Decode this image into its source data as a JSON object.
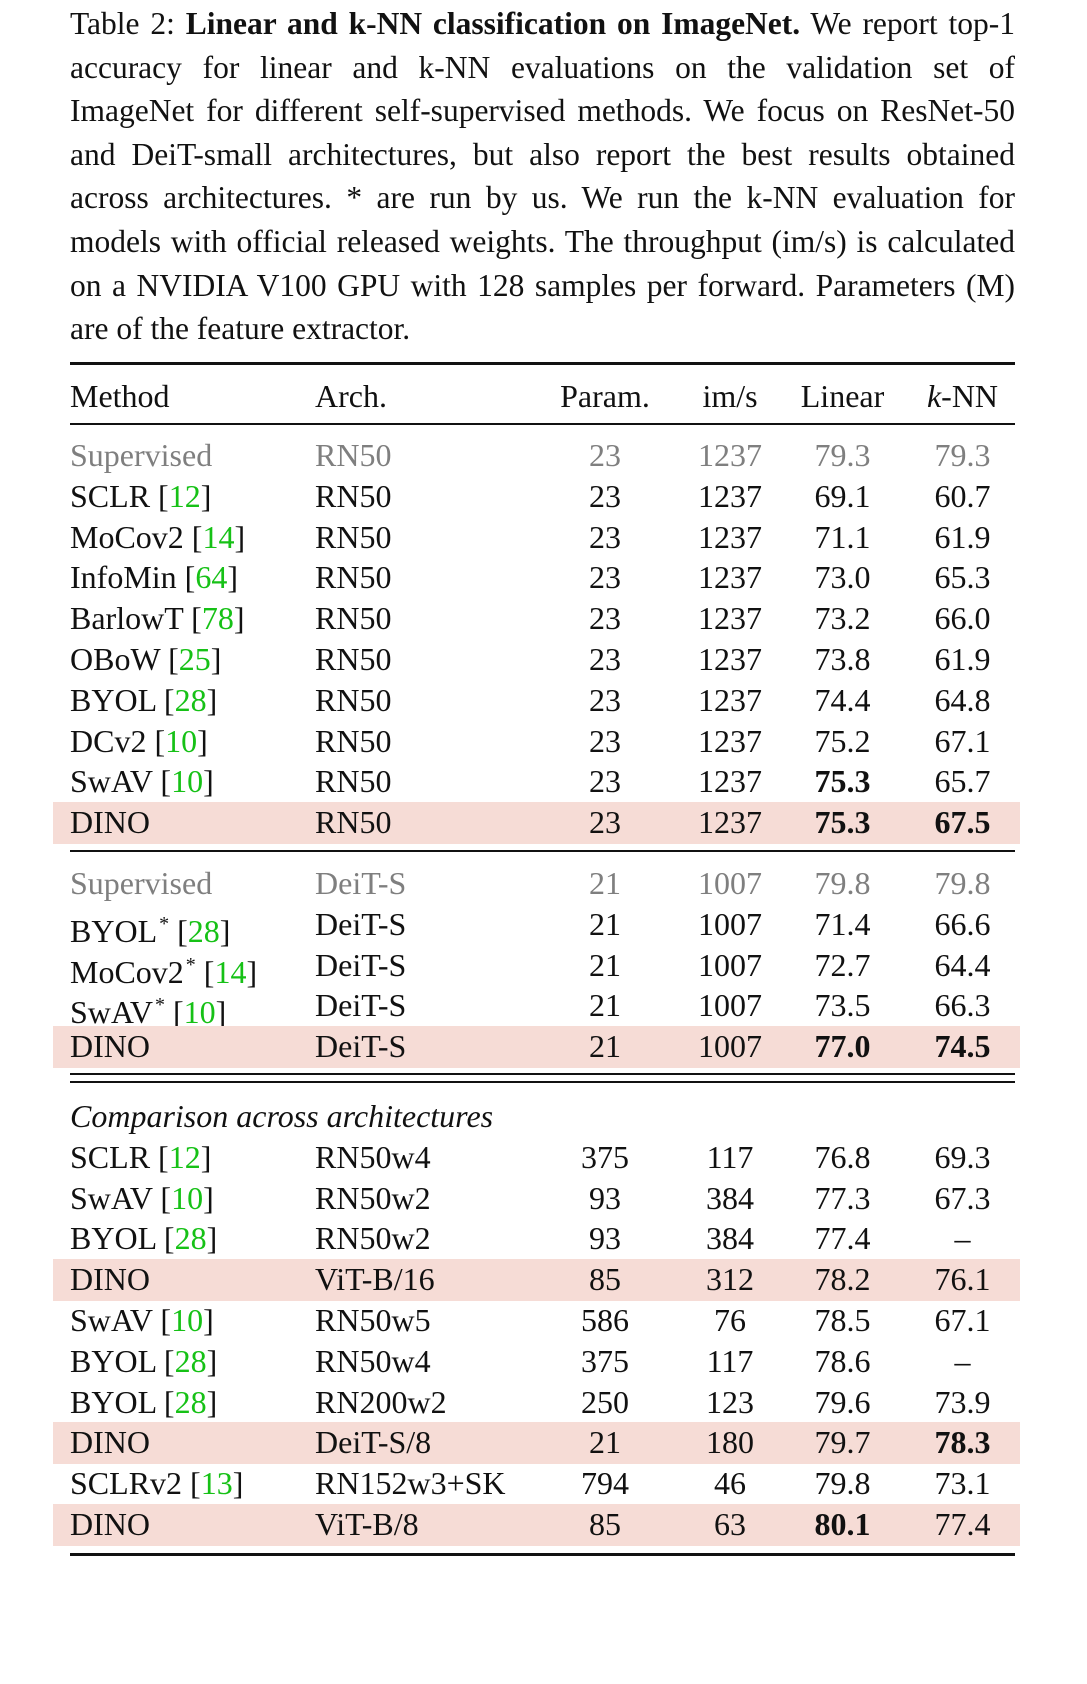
{
  "caption": {
    "label": "Table 2:",
    "title": "Linear and k-NN classification on ImageNet.",
    "body": "We report top-1 accuracy for linear and k-NN evaluations on the validation set of ImageNet for different self-supervised methods. We focus on ResNet-50 and DeiT-small architectures, but also report the best results obtained across architectures. * are run by us. We run the k-NN evaluation for models with official released weights. The throughput (im/s) is calculated on a NVIDIA V100 GPU with 128 samples per forward. Parameters (M) are of the feature extractor."
  },
  "header": [
    "Method",
    "Arch.",
    "Param.",
    "im/s",
    "Linear",
    "k-NN"
  ],
  "groups": [
    {
      "rows": [
        {
          "method": "Supervised",
          "ref": "",
          "star": false,
          "arch": "RN50",
          "param": "23",
          "ims": "1237",
          "linear": "79.3",
          "knn": "79.3",
          "gray": true
        },
        {
          "method": "SCLR",
          "ref": "12",
          "star": false,
          "arch": "RN50",
          "param": "23",
          "ims": "1237",
          "linear": "69.1",
          "knn": "60.7"
        },
        {
          "method": "MoCov2",
          "ref": "14",
          "star": false,
          "arch": "RN50",
          "param": "23",
          "ims": "1237",
          "linear": "71.1",
          "knn": "61.9"
        },
        {
          "method": "InfoMin",
          "ref": "64",
          "star": false,
          "arch": "RN50",
          "param": "23",
          "ims": "1237",
          "linear": "73.0",
          "knn": "65.3"
        },
        {
          "method": "BarlowT",
          "ref": "78",
          "star": false,
          "arch": "RN50",
          "param": "23",
          "ims": "1237",
          "linear": "73.2",
          "knn": "66.0"
        },
        {
          "method": "OBoW",
          "ref": "25",
          "star": false,
          "arch": "RN50",
          "param": "23",
          "ims": "1237",
          "linear": "73.8",
          "knn": "61.9"
        },
        {
          "method": "BYOL",
          "ref": "28",
          "star": false,
          "arch": "RN50",
          "param": "23",
          "ims": "1237",
          "linear": "74.4",
          "knn": "64.8"
        },
        {
          "method": "DCv2",
          "ref": "10",
          "star": false,
          "arch": "RN50",
          "param": "23",
          "ims": "1237",
          "linear": "75.2",
          "knn": "67.1"
        },
        {
          "method": "SwAV",
          "ref": "10",
          "star": false,
          "arch": "RN50",
          "param": "23",
          "ims": "1237",
          "linear": "75.3",
          "knn": "65.7",
          "bold_linear": true
        },
        {
          "method": "DINO",
          "ref": "",
          "star": false,
          "arch": "RN50",
          "param": "23",
          "ims": "1237",
          "linear": "75.3",
          "knn": "67.5",
          "highlight": true,
          "bold_linear": true,
          "bold_knn": true
        }
      ]
    },
    {
      "rows": [
        {
          "method": "Supervised",
          "ref": "",
          "star": false,
          "arch": "DeiT-S",
          "param": "21",
          "ims": "1007",
          "linear": "79.8",
          "knn": "79.8",
          "gray": true
        },
        {
          "method": "BYOL",
          "ref": "28",
          "star": true,
          "arch": "DeiT-S",
          "param": "21",
          "ims": "1007",
          "linear": "71.4",
          "knn": "66.6"
        },
        {
          "method": "MoCov2",
          "ref": "14",
          "star": true,
          "arch": "DeiT-S",
          "param": "21",
          "ims": "1007",
          "linear": "72.7",
          "knn": "64.4"
        },
        {
          "method": "SwAV",
          "ref": "10",
          "star": true,
          "arch": "DeiT-S",
          "param": "21",
          "ims": "1007",
          "linear": "73.5",
          "knn": "66.3"
        },
        {
          "method": "DINO",
          "ref": "",
          "star": false,
          "arch": "DeiT-S",
          "param": "21",
          "ims": "1007",
          "linear": "77.0",
          "knn": "74.5",
          "highlight": true,
          "bold_linear": true,
          "bold_knn": true
        }
      ]
    },
    {
      "title": "Comparison across architectures",
      "rows": [
        {
          "method": "SCLR",
          "ref": "12",
          "star": false,
          "arch": "RN50w4",
          "param": "375",
          "ims": "117",
          "linear": "76.8",
          "knn": "69.3"
        },
        {
          "method": "SwAV",
          "ref": "10",
          "star": false,
          "arch": "RN50w2",
          "param": "93",
          "ims": "384",
          "linear": "77.3",
          "knn": "67.3"
        },
        {
          "method": "BYOL",
          "ref": "28",
          "star": false,
          "arch": "RN50w2",
          "param": "93",
          "ims": "384",
          "linear": "77.4",
          "knn": "–"
        },
        {
          "method": "DINO",
          "ref": "",
          "star": false,
          "arch": "ViT-B/16",
          "param": "85",
          "ims": "312",
          "linear": "78.2",
          "knn": "76.1",
          "highlight": true
        },
        {
          "method": "SwAV",
          "ref": "10",
          "star": false,
          "arch": "RN50w5",
          "param": "586",
          "ims": "76",
          "linear": "78.5",
          "knn": "67.1"
        },
        {
          "method": "BYOL",
          "ref": "28",
          "star": false,
          "arch": "RN50w4",
          "param": "375",
          "ims": "117",
          "linear": "78.6",
          "knn": "–"
        },
        {
          "method": "BYOL",
          "ref": "28",
          "star": false,
          "arch": "RN200w2",
          "param": "250",
          "ims": "123",
          "linear": "79.6",
          "knn": "73.9"
        },
        {
          "method": "DINO",
          "ref": "",
          "star": false,
          "arch": "DeiT-S/8",
          "param": "21",
          "ims": "180",
          "linear": "79.7",
          "knn": "78.3",
          "highlight": true,
          "bold_knn": true
        },
        {
          "method": "SCLRv2",
          "ref": "13",
          "star": false,
          "arch": "RN152w3+SK",
          "param": "794",
          "ims": "46",
          "linear": "79.8",
          "knn": "73.1"
        },
        {
          "method": "DINO",
          "ref": "",
          "star": false,
          "arch": "ViT-B/8",
          "param": "85",
          "ims": "63",
          "linear": "80.1",
          "knn": "77.4",
          "highlight": true,
          "bold_linear": true
        }
      ]
    }
  ]
}
